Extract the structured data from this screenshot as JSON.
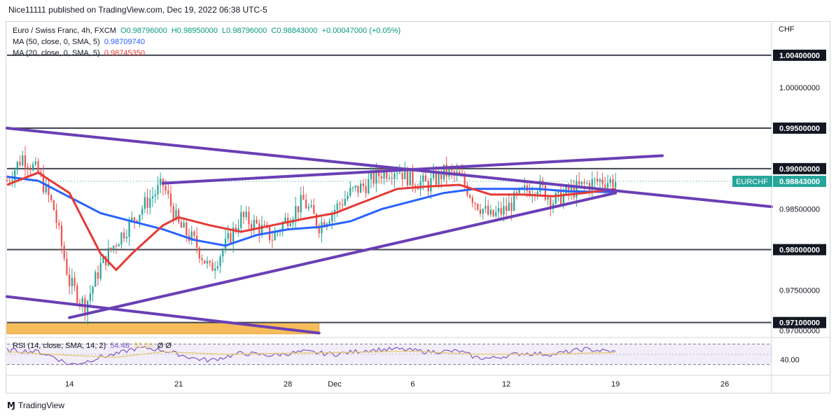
{
  "header": {
    "publisher_line": "Nice11111 published on TradingView.com, Dec 19, 2022 06:38 UTC-5"
  },
  "legend": {
    "symbol": "Euro / Swiss Franc, 4h, FXCM",
    "o": "O0.98796000",
    "h": "H0.98950000",
    "l": "L0.98796000",
    "c": "C0.98843000",
    "chg": "+0.00047000 (+0.05%)",
    "ma50_label": "MA (50, close, 0, SMA, 5)",
    "ma50_value": "0.98709740",
    "ma20_label": "MA (20, close, 0, SMA, 5)",
    "ma20_value": "0.98745350"
  },
  "rsi_legend": {
    "label": "RSI (14, close, SMA, 14, 2)",
    "value": "54.48",
    "sma_value": "53.56",
    "extra": "Ø Ø"
  },
  "currency": "CHF",
  "footer": {
    "brand": "TradingView"
  },
  "colors": {
    "up": "#26a69a",
    "down": "#ef5350",
    "ma50": "#2962ff",
    "ma20": "#e53935",
    "trendline": "#6a3fb5",
    "level": "#434651",
    "zone": "#f5a623",
    "rsi": "#7e57c2",
    "rsi_sma": "#e6c86e",
    "tag": "#26a69a"
  },
  "chart_data": {
    "type": "candlestick",
    "title": "Euro / Swiss Franc, 4h, FXCM",
    "ylim": [
      0.9695,
      1.0065
    ],
    "y_ticks": [
      "1.00400000",
      "1.00000000",
      "0.99500000",
      "0.99000000",
      "0.98843000",
      "0.98500000",
      "0.98000000",
      "0.97500000",
      "0.97100000",
      "0.97000000"
    ],
    "y_tick_values": [
      1.004,
      1.0,
      0.995,
      0.99,
      0.98843,
      0.985,
      0.98,
      0.975,
      0.971,
      0.97
    ],
    "boxed_levels": [
      1.004,
      0.995,
      0.99,
      0.98,
      0.971
    ],
    "current_label": "EURCHF",
    "current_price": 0.98843,
    "x_ticks": [
      "14",
      "21",
      "28",
      "Dec",
      "6",
      "12",
      "19",
      "26"
    ],
    "x_tick_dates": [
      "2022-11-14",
      "2022-11-21",
      "2022-11-28",
      "2022-12-01",
      "2022-12-06",
      "2022-12-12",
      "2022-12-19",
      "2022-12-26"
    ],
    "x_range": [
      "2022-11-10",
      "2022-12-29"
    ],
    "horizontal_levels": [
      1.004,
      0.995,
      0.99,
      0.98,
      0.971
    ],
    "support_zone": [
      0.9696,
      0.971
    ],
    "trendlines": [
      {
        "name": "upper descending",
        "from": [
          "2022-11-10",
          0.995
        ],
        "to": [
          "2022-12-29",
          0.9853
        ]
      },
      {
        "name": "lower descending",
        "from": [
          "2022-11-10",
          0.9742
        ],
        "to": [
          "2022-11-30",
          0.9697
        ]
      },
      {
        "name": "rising support",
        "from": [
          "2022-11-14",
          0.9716
        ],
        "to": [
          "2022-12-19",
          0.987
        ]
      },
      {
        "name": "rising resistance",
        "from": [
          "2022-11-20",
          0.9882
        ],
        "to": [
          "2022-12-22",
          0.9916
        ]
      }
    ],
    "price_anchors": [
      [
        "2022-11-10",
        0.9885
      ],
      [
        "2022-11-11",
        0.9915
      ],
      [
        "2022-11-12",
        0.9895
      ],
      [
        "2022-11-13",
        0.985
      ],
      [
        "2022-11-14",
        0.976
      ],
      [
        "2022-11-15",
        0.973
      ],
      [
        "2022-11-16",
        0.978
      ],
      [
        "2022-11-17",
        0.981
      ],
      [
        "2022-11-18",
        0.9835
      ],
      [
        "2022-11-19",
        0.986
      ],
      [
        "2022-11-20",
        0.988
      ],
      [
        "2022-11-21",
        0.983
      ],
      [
        "2022-11-22",
        0.981
      ],
      [
        "2022-11-23",
        0.9775
      ],
      [
        "2022-11-24",
        0.9805
      ],
      [
        "2022-11-25",
        0.984
      ],
      [
        "2022-11-26",
        0.983
      ],
      [
        "2022-11-27",
        0.9815
      ],
      [
        "2022-11-28",
        0.984
      ],
      [
        "2022-11-29",
        0.986
      ],
      [
        "2022-11-30",
        0.983
      ],
      [
        "2022-12-01",
        0.985
      ],
      [
        "2022-12-02",
        0.987
      ],
      [
        "2022-12-03",
        0.988
      ],
      [
        "2022-12-04",
        0.9895
      ],
      [
        "2022-12-05",
        0.99
      ],
      [
        "2022-12-06",
        0.9885
      ],
      [
        "2022-12-07",
        0.988
      ],
      [
        "2022-12-08",
        0.9895
      ],
      [
        "2022-12-09",
        0.989
      ],
      [
        "2022-12-10",
        0.986
      ],
      [
        "2022-12-11",
        0.984
      ],
      [
        "2022-12-12",
        0.985
      ],
      [
        "2022-12-13",
        0.987
      ],
      [
        "2022-12-14",
        0.988
      ],
      [
        "2022-12-15",
        0.986
      ],
      [
        "2022-12-16",
        0.987
      ],
      [
        "2022-12-17",
        0.988
      ],
      [
        "2022-12-18",
        0.9885
      ],
      [
        "2022-12-19",
        0.9884
      ]
    ],
    "ma50": [
      [
        "2022-11-10",
        0.989
      ],
      [
        "2022-11-12",
        0.9885
      ],
      [
        "2022-11-14",
        0.9865
      ],
      [
        "2022-11-16",
        0.9845
      ],
      [
        "2022-11-18",
        0.9835
      ],
      [
        "2022-11-20",
        0.9825
      ],
      [
        "2022-11-22",
        0.9812
      ],
      [
        "2022-11-24",
        0.9805
      ],
      [
        "2022-11-26",
        0.9818
      ],
      [
        "2022-11-28",
        0.9825
      ],
      [
        "2022-11-30",
        0.9828
      ],
      [
        "2022-12-02",
        0.9835
      ],
      [
        "2022-12-04",
        0.985
      ],
      [
        "2022-12-06",
        0.986
      ],
      [
        "2022-12-08",
        0.987
      ],
      [
        "2022-12-10",
        0.9875
      ],
      [
        "2022-12-12",
        0.9875
      ],
      [
        "2022-12-14",
        0.9875
      ],
      [
        "2022-12-16",
        0.9872
      ],
      [
        "2022-12-19",
        0.9871
      ]
    ],
    "ma20": [
      [
        "2022-11-10",
        0.988
      ],
      [
        "2022-11-12",
        0.9895
      ],
      [
        "2022-11-14",
        0.987
      ],
      [
        "2022-11-16",
        0.9795
      ],
      [
        "2022-11-17",
        0.9775
      ],
      [
        "2022-11-18",
        0.9795
      ],
      [
        "2022-11-20",
        0.983
      ],
      [
        "2022-11-21",
        0.984
      ],
      [
        "2022-11-23",
        0.983
      ],
      [
        "2022-11-25",
        0.9822
      ],
      [
        "2022-11-27",
        0.983
      ],
      [
        "2022-11-29",
        0.9838
      ],
      [
        "2022-12-01",
        0.9845
      ],
      [
        "2022-12-03",
        0.986
      ],
      [
        "2022-12-05",
        0.9875
      ],
      [
        "2022-12-07",
        0.9878
      ],
      [
        "2022-12-09",
        0.988
      ],
      [
        "2022-12-11",
        0.9868
      ],
      [
        "2022-12-13",
        0.9868
      ],
      [
        "2022-12-15",
        0.9866
      ],
      [
        "2022-12-17",
        0.987
      ],
      [
        "2022-12-19",
        0.9875
      ]
    ],
    "rsi": {
      "ylim": [
        20,
        80
      ],
      "y_ticks": [
        "40.00"
      ],
      "band": [
        30,
        70
      ],
      "values": [
        [
          "2022-11-10",
          58
        ],
        [
          "2022-11-12",
          55
        ],
        [
          "2022-11-13",
          45
        ],
        [
          "2022-11-14",
          30
        ],
        [
          "2022-11-15",
          35
        ],
        [
          "2022-11-16",
          45
        ],
        [
          "2022-11-17",
          50
        ],
        [
          "2022-11-18",
          60
        ],
        [
          "2022-11-19",
          62
        ],
        [
          "2022-11-20",
          58
        ],
        [
          "2022-11-22",
          42
        ],
        [
          "2022-11-23",
          38
        ],
        [
          "2022-11-25",
          52
        ],
        [
          "2022-11-27",
          48
        ],
        [
          "2022-11-29",
          55
        ],
        [
          "2022-12-01",
          50
        ],
        [
          "2022-12-03",
          58
        ],
        [
          "2022-12-05",
          60
        ],
        [
          "2022-12-07",
          55
        ],
        [
          "2022-12-09",
          56
        ],
        [
          "2022-12-10",
          44
        ],
        [
          "2022-12-11",
          42
        ],
        [
          "2022-12-13",
          52
        ],
        [
          "2022-12-15",
          50
        ],
        [
          "2022-12-17",
          60
        ],
        [
          "2022-12-19",
          54.48
        ]
      ],
      "sma": [
        [
          "2022-11-10",
          55
        ],
        [
          "2022-11-14",
          48
        ],
        [
          "2022-11-17",
          44
        ],
        [
          "2022-11-20",
          55
        ],
        [
          "2022-11-24",
          50
        ],
        [
          "2022-11-28",
          52
        ],
        [
          "2022-12-02",
          54
        ],
        [
          "2022-12-06",
          56
        ],
        [
          "2022-12-10",
          50
        ],
        [
          "2022-12-14",
          50
        ],
        [
          "2022-12-19",
          53.56
        ]
      ]
    }
  }
}
